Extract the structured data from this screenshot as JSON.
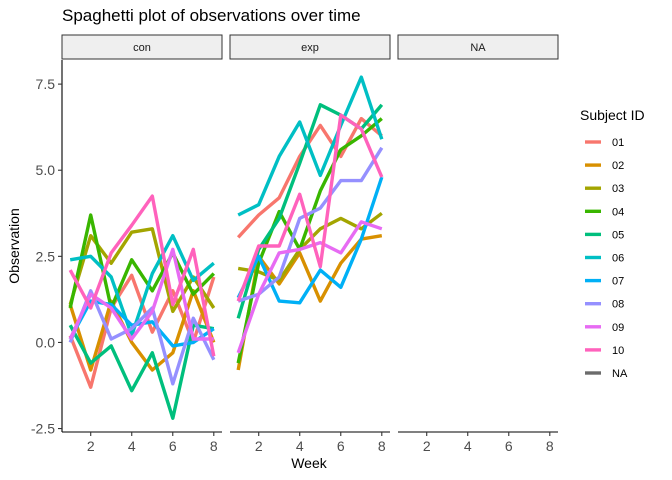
{
  "chart_data": {
    "type": "line",
    "title": "Spaghetti plot of observations over time",
    "xlabel": "Week",
    "ylabel": "Observation",
    "xlim": [
      0.6,
      8.4
    ],
    "ylim": [
      -2.6,
      8.2
    ],
    "x_ticks": [
      2,
      4,
      6,
      8
    ],
    "y_ticks": [
      -2.5,
      0.0,
      2.5,
      5.0,
      7.5
    ],
    "y_tick_labels": [
      "-2.5",
      "0.0",
      "2.5",
      "5.0",
      "7.5"
    ],
    "facets": [
      "con",
      "exp",
      "NA"
    ],
    "legend": {
      "title": "Subject ID",
      "position": "right"
    },
    "grid": false,
    "series": [
      {
        "name": "01",
        "color": "#F8766D",
        "panels": {
          "con": [
            [
              1,
              0.2
            ],
            [
              2,
              -1.3
            ],
            [
              3,
              1.0
            ],
            [
              4,
              1.95
            ],
            [
              5,
              0.3
            ],
            [
              6,
              1.5
            ],
            [
              7,
              0.0
            ],
            [
              8,
              1.9
            ]
          ],
          "exp": [
            [
              1,
              3.05
            ],
            [
              2,
              3.7
            ],
            [
              3,
              4.2
            ],
            [
              4,
              5.4
            ],
            [
              5,
              6.3
            ],
            [
              6,
              5.4
            ],
            [
              7,
              6.5
            ],
            [
              8,
              6.0
            ]
          ]
        }
      },
      {
        "name": "02",
        "color": "#D89000",
        "panels": {
          "con": [
            [
              1,
              1.1
            ],
            [
              2,
              -0.8
            ],
            [
              3,
              1.2
            ],
            [
              4,
              0.0
            ],
            [
              5,
              -0.8
            ],
            [
              6,
              -0.3
            ],
            [
              7,
              1.5
            ],
            [
              8,
              0.0
            ]
          ],
          "exp": [
            [
              1,
              -0.8
            ],
            [
              2,
              2.5
            ],
            [
              3,
              1.7
            ],
            [
              4,
              2.6
            ],
            [
              5,
              1.2
            ],
            [
              6,
              2.3
            ],
            [
              7,
              3.0
            ],
            [
              8,
              3.1
            ]
          ]
        }
      },
      {
        "name": "03",
        "color": "#A3A500",
        "panels": {
          "con": [
            [
              1,
              1.1
            ],
            [
              2,
              3.1
            ],
            [
              3,
              2.3
            ],
            [
              4,
              3.2
            ],
            [
              5,
              3.3
            ],
            [
              6,
              0.9
            ],
            [
              7,
              1.9
            ],
            [
              8,
              1.0
            ]
          ],
          "exp": [
            [
              1,
              2.15
            ],
            [
              2,
              2.05
            ],
            [
              3,
              1.8
            ],
            [
              4,
              2.7
            ],
            [
              5,
              3.3
            ],
            [
              6,
              3.6
            ],
            [
              7,
              3.3
            ],
            [
              8,
              3.75
            ]
          ]
        }
      },
      {
        "name": "04",
        "color": "#39B600",
        "panels": {
          "con": [
            [
              1,
              1.0
            ],
            [
              2,
              3.7
            ],
            [
              3,
              1.0
            ],
            [
              4,
              2.4
            ],
            [
              5,
              1.5
            ],
            [
              6,
              2.6
            ],
            [
              7,
              1.4
            ],
            [
              8,
              2.0
            ]
          ],
          "exp": [
            [
              1,
              -0.6
            ],
            [
              2,
              2.3
            ],
            [
              3,
              3.8
            ],
            [
              4,
              2.7
            ],
            [
              5,
              4.4
            ],
            [
              6,
              5.6
            ],
            [
              7,
              6.0
            ],
            [
              8,
              6.5
            ]
          ]
        }
      },
      {
        "name": "05",
        "color": "#00BF7D",
        "panels": {
          "con": [
            [
              1,
              0.5
            ],
            [
              2,
              -0.6
            ],
            [
              3,
              -0.1
            ],
            [
              4,
              -1.4
            ],
            [
              5,
              -0.3
            ],
            [
              6,
              -2.2
            ],
            [
              7,
              0.5
            ],
            [
              8,
              0.4
            ]
          ],
          "exp": [
            [
              1,
              0.7
            ],
            [
              2,
              2.7
            ],
            [
              3,
              3.6
            ],
            [
              4,
              5.2
            ],
            [
              5,
              6.9
            ],
            [
              6,
              6.6
            ],
            [
              7,
              6.2
            ],
            [
              8,
              6.9
            ]
          ]
        }
      },
      {
        "name": "06",
        "color": "#00BFC4",
        "panels": {
          "con": [
            [
              1,
              2.4
            ],
            [
              2,
              2.5
            ],
            [
              3,
              1.9
            ],
            [
              4,
              0.2
            ],
            [
              5,
              2.0
            ],
            [
              6,
              3.1
            ],
            [
              7,
              1.8
            ],
            [
              8,
              2.3
            ]
          ],
          "exp": [
            [
              1,
              3.7
            ],
            [
              2,
              4.0
            ],
            [
              3,
              5.4
            ],
            [
              4,
              6.4
            ],
            [
              5,
              4.85
            ],
            [
              6,
              6.3
            ],
            [
              7,
              7.7
            ],
            [
              8,
              5.9
            ]
          ]
        }
      },
      {
        "name": "07",
        "color": "#00B0F6",
        "panels": {
          "con": [
            [
              1,
              0.1
            ],
            [
              2,
              1.2
            ],
            [
              3,
              1.1
            ],
            [
              4,
              0.5
            ],
            [
              5,
              0.6
            ],
            [
              6,
              -0.1
            ],
            [
              7,
              0.0
            ],
            [
              8,
              0.4
            ]
          ],
          "exp": [
            [
              1,
              1.3
            ],
            [
              2,
              2.5
            ],
            [
              3,
              1.2
            ],
            [
              4,
              1.15
            ],
            [
              5,
              2.1
            ],
            [
              6,
              1.6
            ],
            [
              7,
              3.0
            ],
            [
              8,
              4.8
            ]
          ]
        }
      },
      {
        "name": "08",
        "color": "#9590FF",
        "panels": {
          "con": [
            [
              1,
              0.0
            ],
            [
              2,
              1.5
            ],
            [
              3,
              0.1
            ],
            [
              4,
              0.4
            ],
            [
              5,
              1.0
            ],
            [
              6,
              -1.2
            ],
            [
              7,
              0.7
            ],
            [
              8,
              -0.5
            ]
          ],
          "exp": [
            [
              1,
              1.2
            ],
            [
              2,
              1.4
            ],
            [
              3,
              1.9
            ],
            [
              4,
              3.6
            ],
            [
              5,
              3.9
            ],
            [
              6,
              4.7
            ],
            [
              7,
              4.7
            ],
            [
              8,
              5.65
            ]
          ]
        }
      },
      {
        "name": "09",
        "color": "#E76BF3",
        "panels": {
          "con": [
            [
              1,
              0.1
            ],
            [
              2,
              1.4
            ],
            [
              3,
              1.0
            ],
            [
              4,
              0.1
            ],
            [
              5,
              0.9
            ],
            [
              6,
              2.7
            ],
            [
              7,
              0.1
            ],
            [
              8,
              0.1
            ]
          ],
          "exp": [
            [
              1,
              -0.3
            ],
            [
              2,
              1.4
            ],
            [
              3,
              2.6
            ],
            [
              4,
              2.7
            ],
            [
              5,
              2.9
            ],
            [
              6,
              2.6
            ],
            [
              7,
              3.5
            ],
            [
              8,
              3.3
            ]
          ]
        }
      },
      {
        "name": "10",
        "color": "#FF62BC",
        "panels": {
          "con": [
            [
              1,
              2.1
            ],
            [
              2,
              1.0
            ],
            [
              3,
              2.6
            ],
            [
              4,
              3.4
            ],
            [
              5,
              4.25
            ],
            [
              6,
              1.1
            ],
            [
              7,
              2.7
            ],
            [
              8,
              -0.4
            ]
          ],
          "exp": [
            [
              1,
              1.2
            ],
            [
              2,
              2.8
            ],
            [
              3,
              2.8
            ],
            [
              4,
              4.3
            ],
            [
              5,
              2.2
            ],
            [
              6,
              6.6
            ],
            [
              7,
              6.2
            ],
            [
              8,
              4.8
            ]
          ]
        }
      },
      {
        "name": "NA",
        "color": "#6B6B6B",
        "panels": {}
      }
    ]
  }
}
